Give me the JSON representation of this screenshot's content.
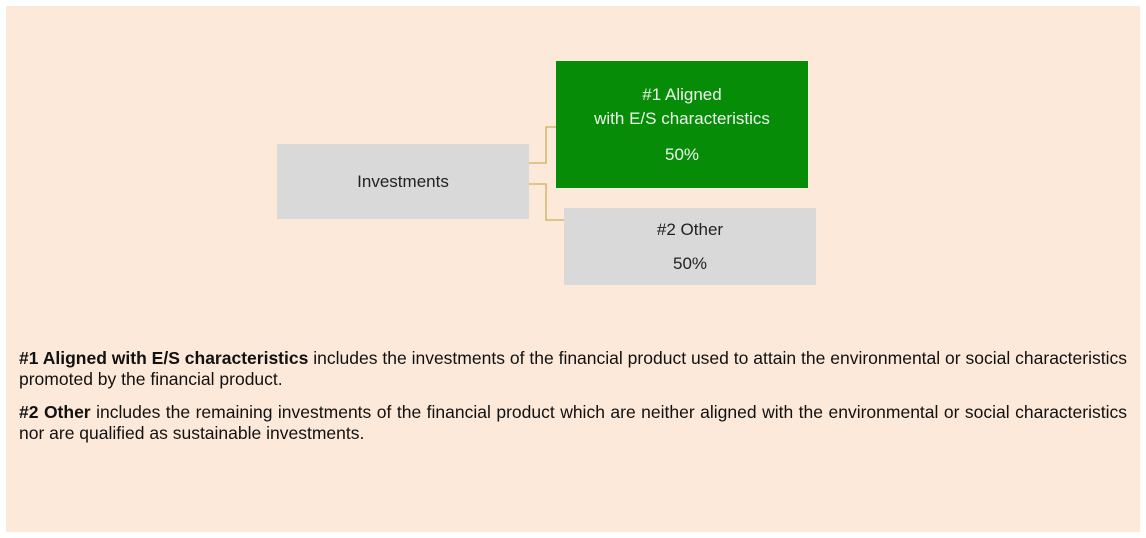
{
  "diagram": {
    "nodes": [
      {
        "label": "Investments"
      },
      {
        "label_lines": [
          "#1 Aligned",
          "with E/S characteristics"
        ],
        "value": "50%"
      },
      {
        "label_lines": [
          "#2 Other"
        ],
        "value": "50%"
      }
    ]
  },
  "notes": [
    {
      "term": "#1 Aligned with E/S characteristics",
      "text": "includes the investments of the financial product used to attain the environmental or social characteristics promoted by the financial product."
    },
    {
      "term": "#2 Other",
      "text": "includes the remaining investments of the financial product which are neither aligned with the environmental or social characteristics nor are qualified as sustainable investments."
    }
  ]
}
